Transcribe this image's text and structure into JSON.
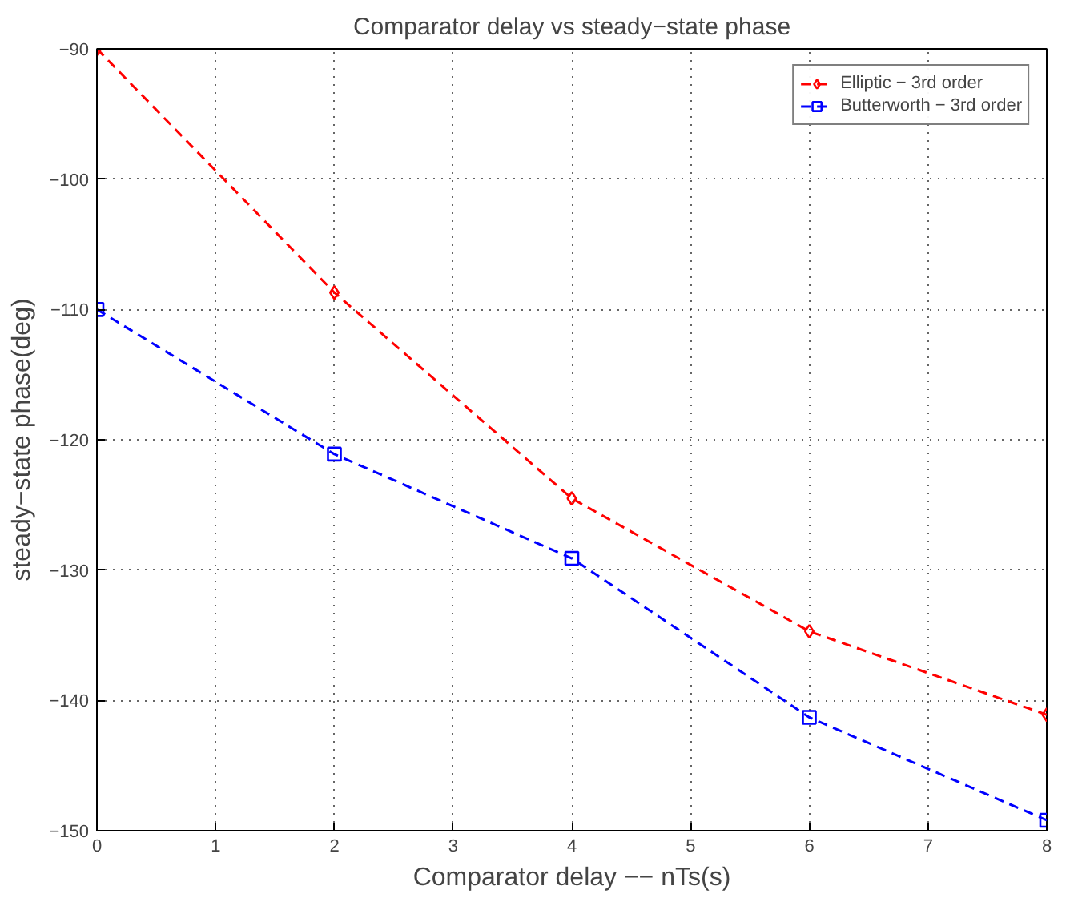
{
  "chart_data": {
    "type": "line",
    "title": "Comparator delay vs steady−state phase",
    "xlabel": "Comparator delay −− nTs(s)",
    "ylabel": "steady−state phase(deg)",
    "x": [
      0,
      2,
      4,
      6,
      8
    ],
    "series": [
      {
        "name": "Elliptic − 3rd order",
        "color": "#ff0000",
        "marker": "diamond",
        "values": [
          -90,
          -108.7,
          -124.5,
          -134.7,
          -141.1
        ]
      },
      {
        "name": "Butterworth − 3rd order",
        "color": "#0000ff",
        "marker": "square",
        "values": [
          -110,
          -121.1,
          -129.1,
          -141.3,
          -149.2
        ]
      }
    ],
    "xlim": [
      0,
      8
    ],
    "xticks": [
      0,
      1,
      2,
      3,
      4,
      5,
      6,
      7,
      8
    ],
    "ylim": [
      -150,
      -90
    ],
    "yticks": [
      -150,
      -140,
      -130,
      -120,
      -110,
      -100,
      -90
    ],
    "grid": true,
    "legend": "top right",
    "line_style": "dashed"
  }
}
